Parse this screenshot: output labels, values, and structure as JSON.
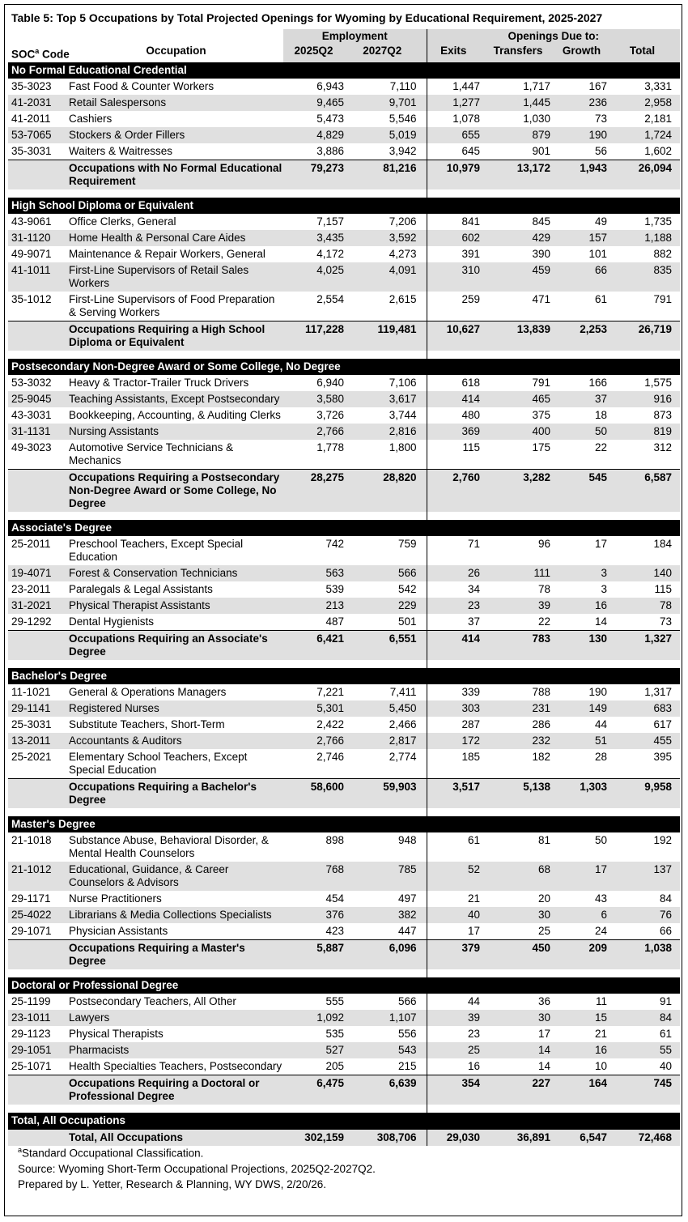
{
  "title": "Table 5: Top 5 Occupations by Total Projected Openings for Wyoming by Educational Requirement, 2025-2027",
  "header": {
    "employment": "Employment",
    "openings": "Openings Due to:",
    "soc": "SOC",
    "soc_sup": "a",
    "code": "Code",
    "columns": [
      "Occupation",
      "2025Q2",
      "2027Q2",
      "Exits",
      "Transfers",
      "Growth",
      "Total"
    ]
  },
  "sections": [
    {
      "title": "No Formal Educational Credential",
      "rows": [
        [
          "35-3023",
          "Fast Food & Counter Workers",
          "6,943",
          "7,110",
          "1,447",
          "1,717",
          "167",
          "3,331"
        ],
        [
          "41-2031",
          "Retail Salespersons",
          "9,465",
          "9,701",
          "1,277",
          "1,445",
          "236",
          "2,958"
        ],
        [
          "41-2011",
          "Cashiers",
          "5,473",
          "5,546",
          "1,078",
          "1,030",
          "73",
          "2,181"
        ],
        [
          "53-7065",
          "Stockers & Order Fillers",
          "4,829",
          "5,019",
          "655",
          "879",
          "190",
          "1,724"
        ],
        [
          "35-3031",
          "Waiters & Waitresses",
          "3,886",
          "3,942",
          "645",
          "901",
          "56",
          "1,602"
        ]
      ],
      "subtotal": [
        "Occupations with No Formal Educational Requirement",
        "79,273",
        "81,216",
        "10,979",
        "13,172",
        "1,943",
        "26,094"
      ]
    },
    {
      "title": "High School Diploma or Equivalent",
      "rows": [
        [
          "43-9061",
          "Office Clerks, General",
          "7,157",
          "7,206",
          "841",
          "845",
          "49",
          "1,735"
        ],
        [
          "31-1120",
          "Home Health & Personal Care Aides",
          "3,435",
          "3,592",
          "602",
          "429",
          "157",
          "1,188"
        ],
        [
          "49-9071",
          "Maintenance & Repair Workers, General",
          "4,172",
          "4,273",
          "391",
          "390",
          "101",
          "882"
        ],
        [
          "41-1011",
          "First-Line Supervisors of Retail Sales Workers",
          "4,025",
          "4,091",
          "310",
          "459",
          "66",
          "835"
        ],
        [
          "35-1012",
          "First-Line Supervisors of Food Preparation & Serving Workers",
          "2,554",
          "2,615",
          "259",
          "471",
          "61",
          "791"
        ]
      ],
      "subtotal": [
        "Occupations Requiring a High School Diploma or Equivalent",
        "117,228",
        "119,481",
        "10,627",
        "13,839",
        "2,253",
        "26,719"
      ]
    },
    {
      "title": "Postsecondary Non-Degree Award or Some College, No Degree",
      "rows": [
        [
          "53-3032",
          "Heavy & Tractor-Trailer Truck Drivers",
          "6,940",
          "7,106",
          "618",
          "791",
          "166",
          "1,575"
        ],
        [
          "25-9045",
          "Teaching Assistants, Except Postsecondary",
          "3,580",
          "3,617",
          "414",
          "465",
          "37",
          "916"
        ],
        [
          "43-3031",
          "Bookkeeping, Accounting, & Auditing Clerks",
          "3,726",
          "3,744",
          "480",
          "375",
          "18",
          "873"
        ],
        [
          "31-1131",
          "Nursing Assistants",
          "2,766",
          "2,816",
          "369",
          "400",
          "50",
          "819"
        ],
        [
          "49-3023",
          "Automotive Service Technicians & Mechanics",
          "1,778",
          "1,800",
          "115",
          "175",
          "22",
          "312"
        ]
      ],
      "subtotal": [
        "Occupations Requiring a Postsecondary Non-Degree Award or Some College, No Degree",
        "28,275",
        "28,820",
        "2,760",
        "3,282",
        "545",
        "6,587"
      ]
    },
    {
      "title": "Associate's Degree",
      "rows": [
        [
          "25-2011",
          "Preschool Teachers, Except Special Education",
          "742",
          "759",
          "71",
          "96",
          "17",
          "184"
        ],
        [
          "19-4071",
          "Forest & Conservation Technicians",
          "563",
          "566",
          "26",
          "111",
          "3",
          "140"
        ],
        [
          "23-2011",
          "Paralegals & Legal Assistants",
          "539",
          "542",
          "34",
          "78",
          "3",
          "115"
        ],
        [
          "31-2021",
          "Physical Therapist Assistants",
          "213",
          "229",
          "23",
          "39",
          "16",
          "78"
        ],
        [
          "29-1292",
          "Dental Hygienists",
          "487",
          "501",
          "37",
          "22",
          "14",
          "73"
        ]
      ],
      "subtotal": [
        "Occupations Requiring an Associate's Degree",
        "6,421",
        "6,551",
        "414",
        "783",
        "130",
        "1,327"
      ]
    },
    {
      "title": "Bachelor's Degree",
      "rows": [
        [
          "11-1021",
          "General & Operations Managers",
          "7,221",
          "7,411",
          "339",
          "788",
          "190",
          "1,317"
        ],
        [
          "29-1141",
          "Registered Nurses",
          "5,301",
          "5,450",
          "303",
          "231",
          "149",
          "683"
        ],
        [
          "25-3031",
          "Substitute Teachers, Short-Term",
          "2,422",
          "2,466",
          "287",
          "286",
          "44",
          "617"
        ],
        [
          "13-2011",
          "Accountants & Auditors",
          "2,766",
          "2,817",
          "172",
          "232",
          "51",
          "455"
        ],
        [
          "25-2021",
          "Elementary School Teachers, Except Special Education",
          "2,746",
          "2,774",
          "185",
          "182",
          "28",
          "395"
        ]
      ],
      "subtotal": [
        "Occupations Requiring a Bachelor's Degree",
        "58,600",
        "59,903",
        "3,517",
        "5,138",
        "1,303",
        "9,958"
      ]
    },
    {
      "title": "Master's Degree",
      "rows": [
        [
          "21-1018",
          "Substance Abuse, Behavioral Disorder, & Mental Health Counselors",
          "898",
          "948",
          "61",
          "81",
          "50",
          "192"
        ],
        [
          "21-1012",
          "Educational, Guidance, & Career Counselors & Advisors",
          "768",
          "785",
          "52",
          "68",
          "17",
          "137"
        ],
        [
          "29-1171",
          "Nurse Practitioners",
          "454",
          "497",
          "21",
          "20",
          "43",
          "84"
        ],
        [
          "25-4022",
          "Librarians & Media Collections Specialists",
          "376",
          "382",
          "40",
          "30",
          "6",
          "76"
        ],
        [
          "29-1071",
          "Physician Assistants",
          "423",
          "447",
          "17",
          "25",
          "24",
          "66"
        ]
      ],
      "subtotal": [
        "Occupations Requiring a Master's Degree",
        "5,887",
        "6,096",
        "379",
        "450",
        "209",
        "1,038"
      ]
    },
    {
      "title": "Doctoral or Professional Degree",
      "rows": [
        [
          "25-1199",
          "Postsecondary Teachers, All Other",
          "555",
          "566",
          "44",
          "36",
          "11",
          "91"
        ],
        [
          "23-1011",
          "Lawyers",
          "1,092",
          "1,107",
          "39",
          "30",
          "15",
          "84"
        ],
        [
          "29-1123",
          "Physical Therapists",
          "535",
          "556",
          "23",
          "17",
          "21",
          "61"
        ],
        [
          "29-1051",
          "Pharmacists",
          "527",
          "543",
          "25",
          "14",
          "16",
          "55"
        ],
        [
          "25-1071",
          "Health Specialties Teachers, Postsecondary",
          "205",
          "215",
          "16",
          "14",
          "10",
          "40"
        ]
      ],
      "subtotal": [
        "Occupations Requiring a Doctoral or Professional Degree",
        "6,475",
        "6,639",
        "354",
        "227",
        "164",
        "745"
      ]
    },
    {
      "title": "Total, All Occupations",
      "rows": [],
      "subtotal": [
        "Total, All Occupations",
        "302,159",
        "308,706",
        "29,030",
        "36,891",
        "6,547",
        "72,468"
      ]
    }
  ],
  "footnotes": {
    "sup": "a",
    "note": "Standard Occupational Classification.",
    "source": "Source: Wyoming Short-Term Occupational Projections, 2025Q2-2027Q2.",
    "prepared": "Prepared by L. Yetter, Research & Planning, WY DWS, 2/20/26."
  }
}
